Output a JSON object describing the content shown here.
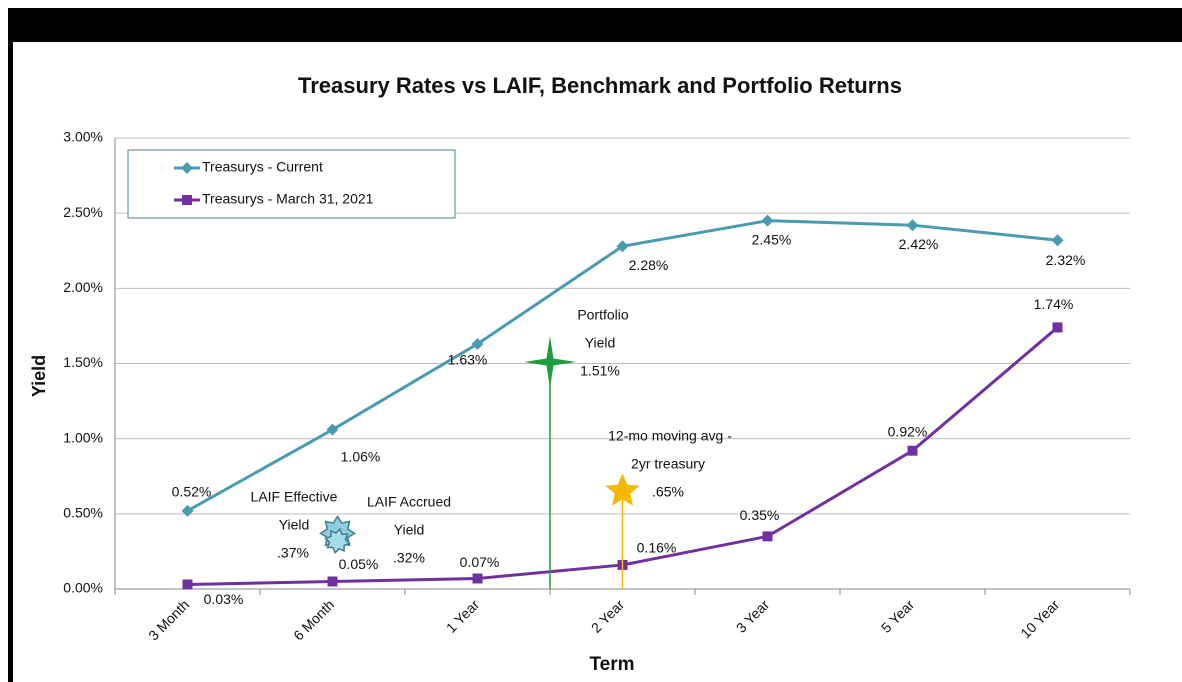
{
  "chart_data": {
    "type": "line",
    "title": "Treasury Rates vs LAIF, Benchmark and Portfolio Returns",
    "x_label": "Term",
    "y_label": "Yield",
    "categories": [
      "3 Month",
      "6 Month",
      "1 Year",
      "2 Year",
      "3 Year",
      "5 Year",
      "10 Year"
    ],
    "series": [
      {
        "name": "Treasurys - Current",
        "color": "#4a9ab0",
        "marker": "diamond",
        "values": [
          0.52,
          1.06,
          1.63,
          2.28,
          2.45,
          2.42,
          2.32
        ],
        "value_labels": [
          "0.52%",
          "1.06%",
          "1.63%",
          "2.28%",
          "2.45%",
          "2.42%",
          "2.32%"
        ]
      },
      {
        "name": "Treasurys - March 31, 2021",
        "color": "#7030a0",
        "marker": "square",
        "values": [
          0.03,
          0.05,
          0.07,
          0.16,
          0.35,
          0.92,
          1.74
        ],
        "value_labels": [
          "0.03%",
          "0.05%",
          "0.07%",
          "0.16%",
          "0.35%",
          "0.92%",
          "1.74%"
        ]
      }
    ],
    "ylim": [
      0,
      3
    ],
    "yticks": [
      {
        "value": 0,
        "label": "0.00%"
      },
      {
        "value": 0.5,
        "label": "0.50%"
      },
      {
        "value": 1,
        "label": "1.00%"
      },
      {
        "value": 1.5,
        "label": "1.50%"
      },
      {
        "value": 2,
        "label": "2.00%"
      },
      {
        "value": 2.5,
        "label": "2.50%"
      },
      {
        "value": 3,
        "label": "3.00%"
      }
    ],
    "grid": true,
    "legend": "upper left",
    "annotations": [
      {
        "lines": [
          "Portfolio",
          "Yield"
        ],
        "label": "1.51%",
        "value": 1.51,
        "color": "#1e9e3a"
      },
      {
        "lines": [
          "LAIF Effective",
          "Yield"
        ],
        "label": ".37%",
        "value": 0.37,
        "color": "#8ccfe0"
      },
      {
        "lines": [
          "LAIF Accrued",
          "Yield"
        ],
        "label": ".32%",
        "value": 0.32,
        "color": "#a8dbe8"
      },
      {
        "lines": [
          "12-mo moving avg -",
          "2yr treasury"
        ],
        "label": ".65%",
        "value": 0.65,
        "color": "#f5b800"
      }
    ]
  }
}
